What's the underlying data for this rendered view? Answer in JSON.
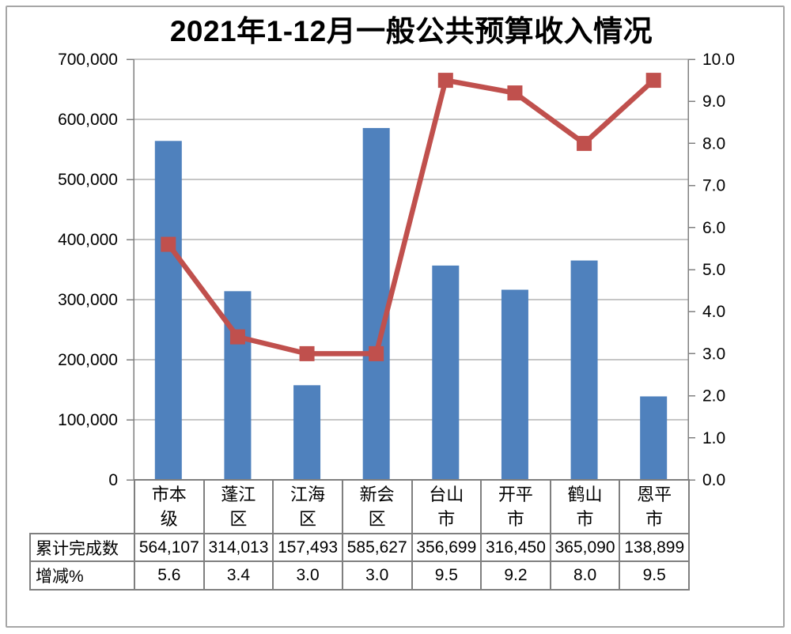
{
  "title": "2021年1-12月一般公共预算收入情况",
  "chart_data": {
    "type": "combo(bar+line)",
    "title": "2021年1-12月一般公共预算收入情况",
    "categories": [
      "市本级",
      "蓬江区",
      "江海区",
      "新会区",
      "台山市",
      "开平市",
      "鹤山市",
      "恩平市"
    ],
    "categories_wrapped": [
      "市本\n级",
      "蓬江\n区",
      "江海\n区",
      "新会\n区",
      "台山\n市",
      "开平\n市",
      "鹤山\n市",
      "恩平\n市"
    ],
    "series": [
      {
        "name": "累计完成数",
        "type": "bar",
        "axis": "left",
        "color": "#4F81BD",
        "values": [
          564107,
          314013,
          157493,
          585627,
          356699,
          316450,
          365090,
          138899
        ]
      },
      {
        "name": "增减%",
        "type": "line",
        "axis": "right",
        "color": "#C0504D",
        "marker": "square",
        "values": [
          5.6,
          3.4,
          3.0,
          3.0,
          9.5,
          9.2,
          8.0,
          9.5
        ]
      }
    ],
    "left_axis": {
      "min": 0,
      "max": 700000,
      "step": 100000,
      "tick_labels": [
        "0",
        "100,000",
        "200,000",
        "300,000",
        "400,000",
        "500,000",
        "600,000",
        "700,000"
      ]
    },
    "right_axis": {
      "min": 0,
      "max": 10,
      "step": 1,
      "tick_labels": [
        "0.0",
        "1.0",
        "2.0",
        "3.0",
        "4.0",
        "5.0",
        "6.0",
        "7.0",
        "8.0",
        "9.0",
        "10.0"
      ]
    },
    "gridlines": "horizontal",
    "legend": "none"
  },
  "table": {
    "rows": [
      {
        "label": "累计完成数",
        "values": [
          "564,107",
          "314,013",
          "157,493",
          "585,627",
          "356,699",
          "316,450",
          "365,090",
          "138,899"
        ]
      },
      {
        "label": "增减%",
        "values": [
          "5.6",
          "3.4",
          "3.0",
          "3.0",
          "9.5",
          "9.2",
          "8.0",
          "9.5"
        ]
      }
    ]
  },
  "colors": {
    "bar": "#4F81BD",
    "line": "#C0504D",
    "grid": "#8C8C8C",
    "axis": "#808080",
    "table_border": "#7F7F7F",
    "frame_border": "#A6A6A6",
    "background": "#FFFFFF",
    "text": "#000000"
  }
}
